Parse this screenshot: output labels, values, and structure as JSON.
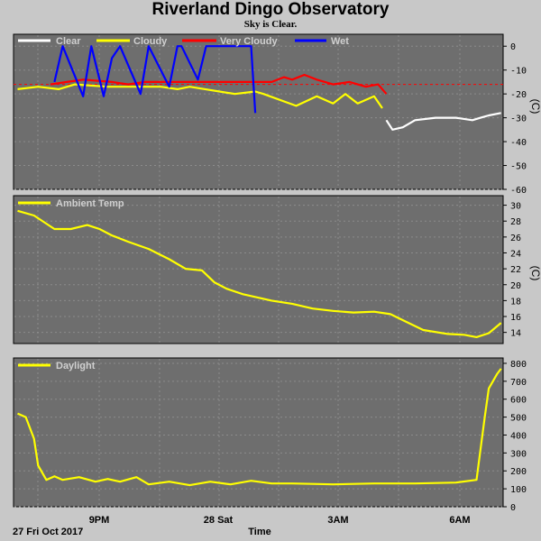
{
  "title": "Riverland Dingo Observatory",
  "subtitle": "Sky is Clear.",
  "footer": {
    "date": "27 Fri Oct 2017",
    "xlabel": "Time"
  },
  "x_tick_labels": [
    "9PM",
    "28 Sat",
    "3AM",
    "6AM"
  ],
  "colors": {
    "background": "#c8c8c8",
    "plot": "#6e6e6e",
    "grid": "#8c8c8c",
    "clear": "#ffffff",
    "cloudy": "#ffff00",
    "very_cloudy": "#ff0000",
    "wet": "#0000ff",
    "threshold": "#ff0000"
  },
  "chart_data": [
    {
      "type": "line",
      "name": "sky",
      "unit": "(C)",
      "ylim": [
        -60,
        5
      ],
      "yticks": [
        0,
        -10,
        -20,
        -30,
        -40,
        -50,
        -60
      ],
      "xlim": [
        18.2,
        30.15
      ],
      "grid": true,
      "legend": [
        "Clear",
        "Cloudy",
        "Very Cloudy",
        "Wet"
      ],
      "threshold": -16,
      "series": [
        {
          "name": "Cloudy",
          "color": "#ffff00",
          "x": [
            18.3,
            18.8,
            19.3,
            19.7,
            20.5,
            21.2,
            21.8,
            22.2,
            22.5,
            23.6,
            24.1,
            24.3,
            25.1,
            25.6,
            26.0,
            26.3,
            26.6,
            27.0,
            27.2
          ],
          "y": [
            -18,
            -17,
            -18,
            -16,
            -17,
            -17,
            -17,
            -18,
            -17,
            -20,
            -19,
            -20,
            -25,
            -21,
            -24,
            -20,
            -24,
            -21,
            -26
          ]
        },
        {
          "name": "Very Cloudy",
          "color": "#ff0000",
          "x": [
            19.1,
            19.5,
            19.9,
            20.6,
            21.0,
            21.4,
            21.9,
            22.3,
            24.5,
            24.8,
            25.0,
            25.3,
            25.6,
            26.0,
            26.4,
            26.8,
            27.1,
            27.3
          ],
          "y": [
            -16,
            -15,
            -14,
            -15,
            -16,
            -15,
            -15,
            -15,
            -15,
            -13,
            -14,
            -12,
            -14,
            -16,
            -15,
            -17,
            -16,
            -20
          ]
        },
        {
          "name": "Wet",
          "color": "#0000ff",
          "x": [
            19.2,
            19.4,
            19.9,
            20.1,
            20.4,
            20.6,
            20.8,
            21.3,
            21.5,
            22.0,
            22.2,
            22.3,
            22.7,
            22.9,
            23.2,
            23.8,
            24.0,
            24.1
          ],
          "y": [
            -15,
            0,
            -21,
            0,
            -21,
            -5,
            0,
            -20,
            0,
            -17,
            0,
            0,
            -14,
            0,
            0,
            0,
            0,
            -28
          ]
        },
        {
          "name": "Clear",
          "color": "#ffffff",
          "x": [
            27.3,
            27.45,
            27.7,
            28.0,
            28.5,
            29.0,
            29.4,
            29.6,
            29.8,
            30.1
          ],
          "y": [
            -31,
            -35,
            -34,
            -31,
            -30,
            -30,
            -31,
            -30,
            -29,
            -28
          ]
        }
      ]
    },
    {
      "type": "line",
      "name": "temperature",
      "unit": "(C)",
      "ylim": [
        12.6,
        31.2
      ],
      "yticks": [
        30,
        28,
        26,
        24,
        22,
        20,
        18,
        16,
        14
      ],
      "xlim": [
        18.2,
        30.15
      ],
      "grid": true,
      "legend": [
        "Ambient Temp"
      ],
      "series": [
        {
          "name": "Ambient Temp",
          "color": "#ffff00",
          "x": [
            18.3,
            18.7,
            19.2,
            19.6,
            20.0,
            20.3,
            20.6,
            21.0,
            21.5,
            22.0,
            22.4,
            22.8,
            23.1,
            23.4,
            23.8,
            24.5,
            25.0,
            25.5,
            26.0,
            26.5,
            27.0,
            27.4,
            27.8,
            28.2,
            28.8,
            29.2,
            29.5,
            29.8,
            30.1
          ],
          "y": [
            29.3,
            28.7,
            27.0,
            27.0,
            27.5,
            27.0,
            26.2,
            25.4,
            24.5,
            23.2,
            22.0,
            21.8,
            20.3,
            19.5,
            18.8,
            18.0,
            17.6,
            17.0,
            16.7,
            16.5,
            16.6,
            16.3,
            15.3,
            14.3,
            13.8,
            13.7,
            13.4,
            13.9,
            15.2
          ]
        }
      ]
    },
    {
      "type": "line",
      "name": "daylight",
      "unit": "",
      "ylim": [
        0,
        830
      ],
      "yticks": [
        800,
        700,
        600,
        500,
        400,
        300,
        200,
        100,
        0
      ],
      "xlim": [
        18.2,
        30.15
      ],
      "grid": true,
      "legend": [
        "Daylight"
      ],
      "series": [
        {
          "name": "Daylight",
          "color": "#ffff00",
          "x": [
            18.3,
            18.5,
            18.7,
            18.8,
            19.0,
            19.2,
            19.4,
            19.8,
            20.2,
            20.5,
            20.8,
            21.2,
            21.5,
            22.0,
            22.5,
            23.0,
            23.5,
            24.0,
            24.5,
            25.0,
            26.0,
            27.0,
            28.0,
            29.0,
            29.5,
            29.7,
            29.8,
            30.0,
            30.1
          ],
          "y": [
            520,
            500,
            380,
            230,
            150,
            170,
            150,
            165,
            140,
            155,
            140,
            165,
            125,
            140,
            120,
            140,
            125,
            145,
            130,
            130,
            125,
            130,
            130,
            135,
            150,
            500,
            660,
            740,
            770
          ]
        }
      ]
    }
  ]
}
